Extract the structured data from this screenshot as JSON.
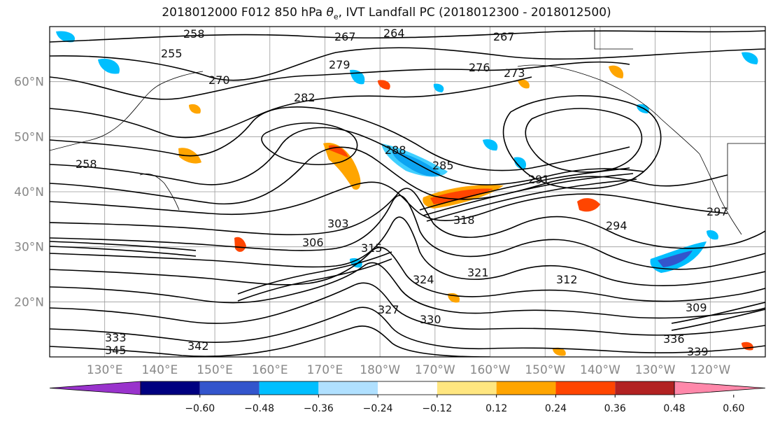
{
  "title": {
    "prefix": "2018012000 F012 850 hPa ",
    "symbol": "θ",
    "symbol_sub": "e",
    "suffix": ", IVT Landfall PC (2018012300 - 2018012500)"
  },
  "map": {
    "lat_labels": [
      "60°N",
      "50°N",
      "40°N",
      "30°N",
      "20°N"
    ],
    "lon_labels": [
      "130°E",
      "140°E",
      "150°E",
      "160°E",
      "170°E",
      "180°W",
      "170°W",
      "160°W",
      "150°W",
      "140°W",
      "130°W",
      "120°W"
    ],
    "lat_range": [
      10,
      70
    ],
    "lon_range_east": [
      120,
      250
    ],
    "grid": true,
    "contour_labels": [
      "258",
      "255",
      "258",
      "264",
      "267",
      "267",
      "270",
      "273",
      "276",
      "279",
      "282",
      "285",
      "288",
      "291",
      "294",
      "297",
      "303",
      "306",
      "309",
      "312",
      "315",
      "318",
      "321",
      "324",
      "327",
      "330",
      "333",
      "336",
      "339",
      "342",
      "345"
    ]
  },
  "colorbar": {
    "colors": [
      "#9933cc",
      "#000080",
      "#3355cc",
      "#00bfff",
      "#b0e0ff",
      "#ffffff",
      "#ffe680",
      "#ffa500",
      "#ff4500",
      "#b22222",
      "#ff88aa"
    ],
    "tick_labels": [
      "−0.60",
      "−0.48",
      "−0.36",
      "−0.24",
      "−0.12",
      "0.12",
      "0.24",
      "0.36",
      "0.48",
      "0.60"
    ]
  }
}
